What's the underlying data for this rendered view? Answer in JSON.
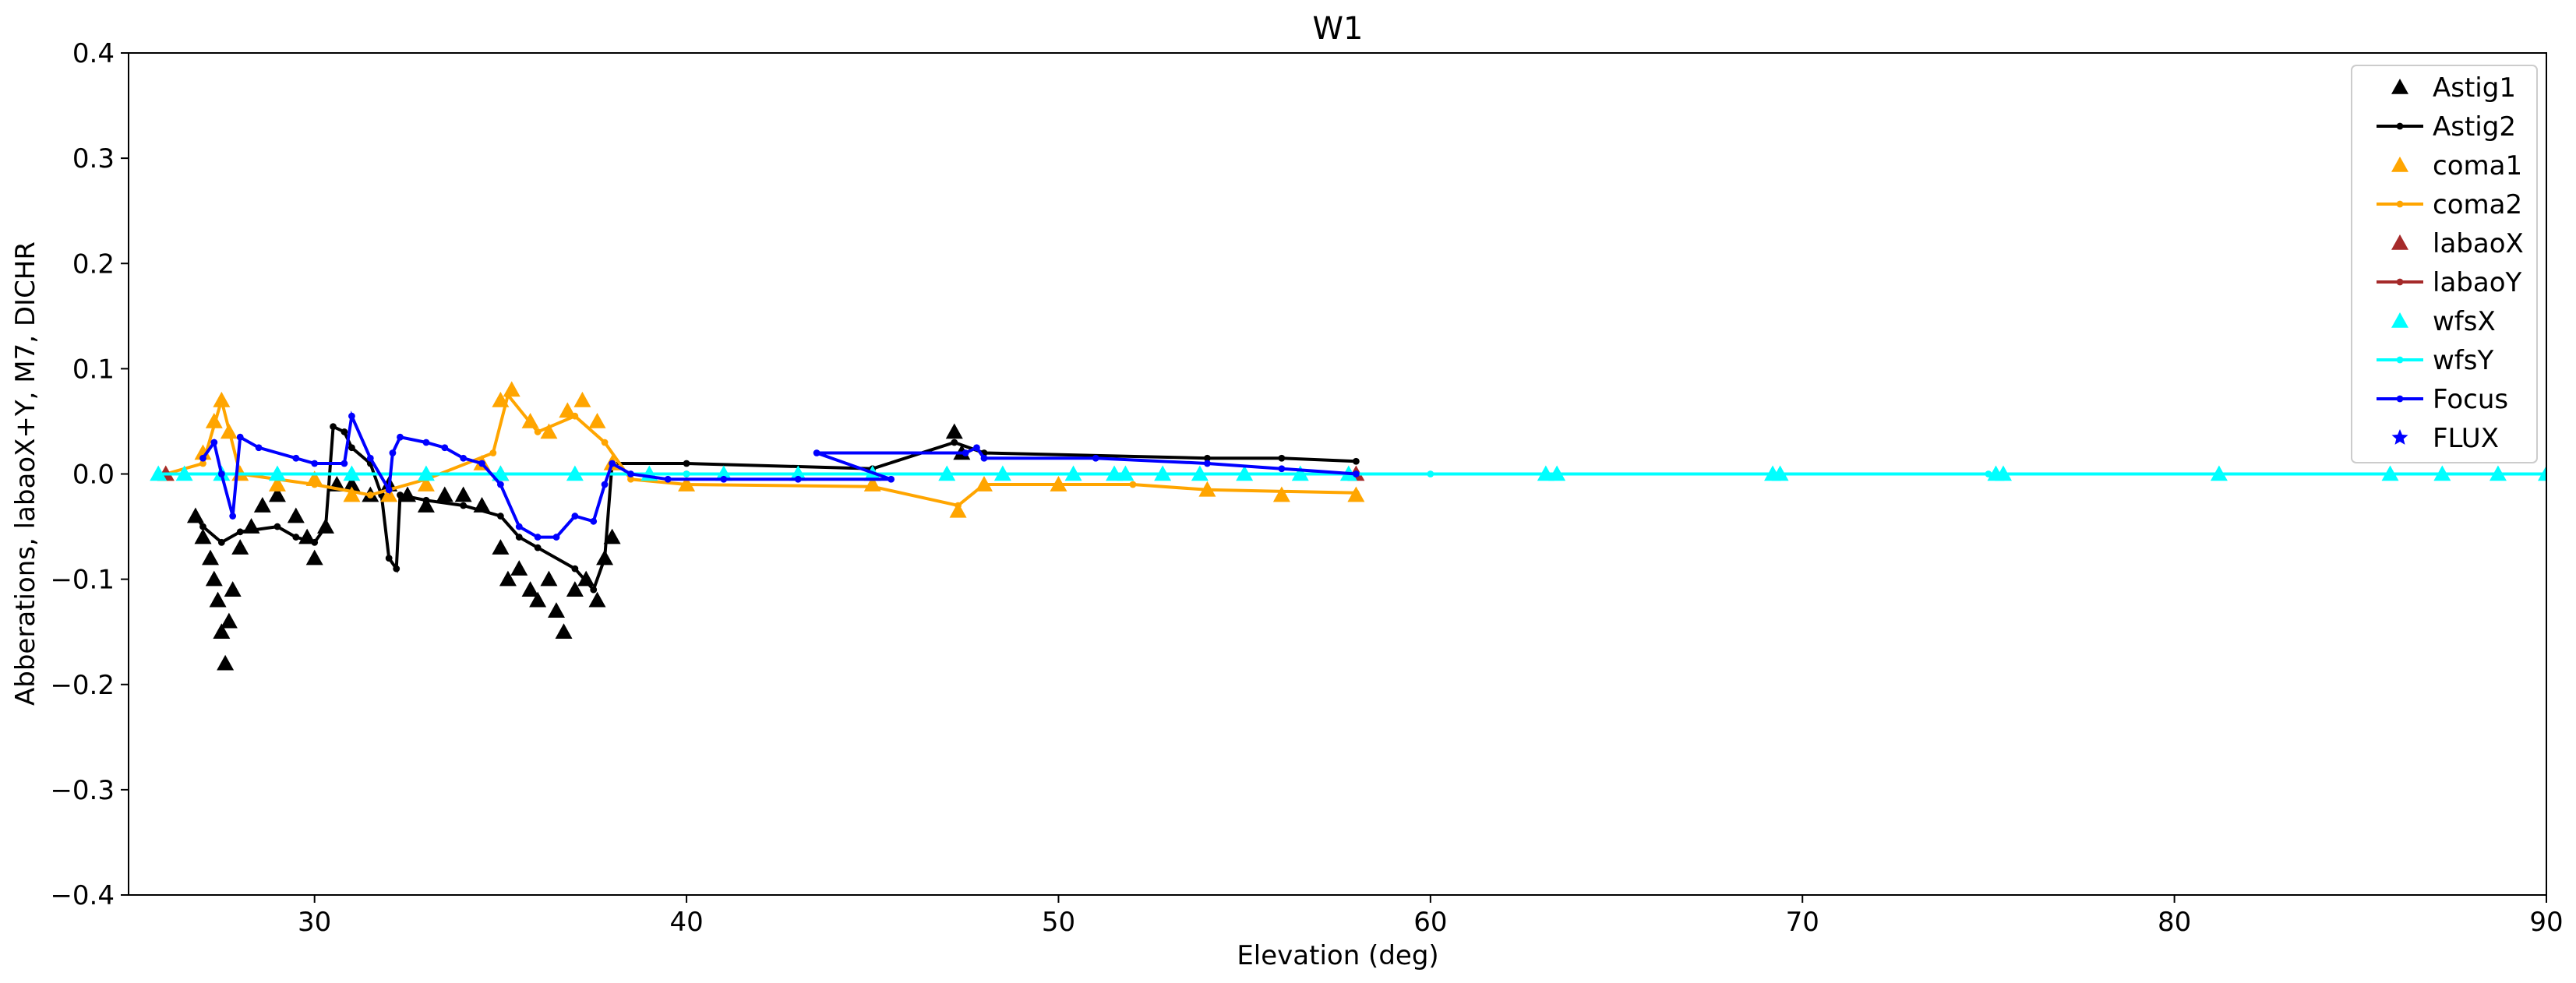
{
  "chart_data": {
    "type": "line",
    "title": "W1",
    "xlabel": "Elevation (deg)",
    "ylabel": "Abberations, labaoX+Y, M7, DICHR",
    "xlim": [
      25,
      90
    ],
    "ylim": [
      -0.4,
      0.4
    ],
    "x_ticks": [
      30,
      40,
      50,
      60,
      70,
      80,
      90
    ],
    "y_ticks": [
      -0.4,
      -0.3,
      -0.2,
      -0.1,
      0.0,
      0.1,
      0.2,
      0.3,
      0.4
    ],
    "x_tick_labels": [
      "30",
      "40",
      "50",
      "60",
      "70",
      "80",
      "90"
    ],
    "y_tick_labels": [
      "−0.4",
      "−0.3",
      "−0.2",
      "−0.1",
      "0.0",
      "0.1",
      "0.2",
      "0.3",
      "0.4"
    ],
    "grid": false,
    "legend_position": "top-right",
    "series": [
      {
        "name": "Astig1",
        "color": "#000000",
        "marker": "triangle",
        "line": false,
        "points": [
          [
            26.8,
            -0.04
          ],
          [
            27.0,
            -0.06
          ],
          [
            27.2,
            -0.08
          ],
          [
            27.3,
            -0.1
          ],
          [
            27.4,
            -0.12
          ],
          [
            27.5,
            -0.15
          ],
          [
            27.6,
            -0.18
          ],
          [
            27.7,
            -0.14
          ],
          [
            27.8,
            -0.11
          ],
          [
            28.0,
            -0.07
          ],
          [
            28.3,
            -0.05
          ],
          [
            28.6,
            -0.03
          ],
          [
            29.0,
            -0.02
          ],
          [
            29.5,
            -0.04
          ],
          [
            29.8,
            -0.06
          ],
          [
            30.0,
            -0.08
          ],
          [
            30.3,
            -0.05
          ],
          [
            30.6,
            -0.01
          ],
          [
            31.0,
            -0.01
          ],
          [
            31.5,
            -0.02
          ],
          [
            32.0,
            -0.01
          ],
          [
            32.5,
            -0.02
          ],
          [
            33.0,
            -0.03
          ],
          [
            33.5,
            -0.02
          ],
          [
            34.0,
            -0.02
          ],
          [
            34.5,
            -0.03
          ],
          [
            35.0,
            -0.07
          ],
          [
            35.2,
            -0.1
          ],
          [
            35.5,
            -0.09
          ],
          [
            35.8,
            -0.11
          ],
          [
            36.0,
            -0.12
          ],
          [
            36.3,
            -0.1
          ],
          [
            36.5,
            -0.13
          ],
          [
            36.7,
            -0.15
          ],
          [
            37.0,
            -0.11
          ],
          [
            37.3,
            -0.1
          ],
          [
            37.6,
            -0.12
          ],
          [
            37.8,
            -0.08
          ],
          [
            38.0,
            -0.06
          ],
          [
            47.2,
            0.04
          ],
          [
            47.4,
            0.02
          ]
        ]
      },
      {
        "name": "Astig2",
        "color": "#000000",
        "marker": "dot",
        "line": true,
        "points": [
          [
            26.8,
            -0.04
          ],
          [
            27.0,
            -0.05
          ],
          [
            27.5,
            -0.065
          ],
          [
            28.0,
            -0.055
          ],
          [
            29.0,
            -0.05
          ],
          [
            29.5,
            -0.06
          ],
          [
            30.0,
            -0.065
          ],
          [
            30.3,
            -0.05
          ],
          [
            30.5,
            0.045
          ],
          [
            30.8,
            0.04
          ],
          [
            31.0,
            0.025
          ],
          [
            31.5,
            0.01
          ],
          [
            31.8,
            -0.02
          ],
          [
            32.0,
            -0.08
          ],
          [
            32.2,
            -0.09
          ],
          [
            32.3,
            -0.02
          ],
          [
            33.0,
            -0.025
          ],
          [
            34.0,
            -0.03
          ],
          [
            35.0,
            -0.04
          ],
          [
            35.5,
            -0.06
          ],
          [
            36.0,
            -0.07
          ],
          [
            37.0,
            -0.09
          ],
          [
            37.5,
            -0.11
          ],
          [
            37.8,
            -0.08
          ],
          [
            38.0,
            0.01
          ],
          [
            40.0,
            0.01
          ],
          [
            45.0,
            0.005
          ],
          [
            47.2,
            0.03
          ],
          [
            48.0,
            0.02
          ],
          [
            54.0,
            0.015
          ],
          [
            56.0,
            0.015
          ],
          [
            58.0,
            0.012
          ]
        ]
      },
      {
        "name": "coma1",
        "color": "#ffa500",
        "marker": "triangle",
        "line": false,
        "points": [
          [
            26.0,
            0.0
          ],
          [
            27.0,
            0.02
          ],
          [
            27.3,
            0.05
          ],
          [
            27.5,
            0.07
          ],
          [
            27.7,
            0.04
          ],
          [
            28.0,
            0.0
          ],
          [
            29.0,
            -0.01
          ],
          [
            30.0,
            -0.005
          ],
          [
            31.0,
            -0.02
          ],
          [
            32.0,
            -0.02
          ],
          [
            33.0,
            -0.01
          ],
          [
            34.5,
            0.01
          ],
          [
            35.0,
            0.07
          ],
          [
            35.3,
            0.08
          ],
          [
            35.8,
            0.05
          ],
          [
            36.3,
            0.04
          ],
          [
            36.8,
            0.06
          ],
          [
            37.2,
            0.07
          ],
          [
            37.6,
            0.05
          ],
          [
            38.0,
            0.01
          ],
          [
            40.0,
            -0.01
          ],
          [
            45.0,
            -0.01
          ],
          [
            47.3,
            -0.035
          ],
          [
            48.0,
            -0.01
          ],
          [
            50.0,
            -0.01
          ],
          [
            54.0,
            -0.015
          ],
          [
            56.0,
            -0.02
          ],
          [
            58.0,
            -0.02
          ]
        ]
      },
      {
        "name": "coma2",
        "color": "#ffa500",
        "marker": "dot",
        "line": true,
        "points": [
          [
            26.0,
            0.0
          ],
          [
            27.0,
            0.01
          ],
          [
            27.5,
            0.07
          ],
          [
            28.0,
            0.0
          ],
          [
            30.0,
            -0.01
          ],
          [
            31.5,
            -0.02
          ],
          [
            33.0,
            -0.005
          ],
          [
            34.8,
            0.02
          ],
          [
            35.2,
            0.075
          ],
          [
            36.0,
            0.04
          ],
          [
            37.0,
            0.055
          ],
          [
            37.8,
            0.03
          ],
          [
            38.5,
            -0.005
          ],
          [
            40.0,
            -0.01
          ],
          [
            45.0,
            -0.012
          ],
          [
            47.3,
            -0.03
          ],
          [
            48.0,
            -0.01
          ],
          [
            52.0,
            -0.01
          ],
          [
            54.0,
            -0.015
          ],
          [
            58.0,
            -0.018
          ]
        ]
      },
      {
        "name": "labaoX",
        "color": "#a52a2a",
        "marker": "triangle",
        "line": false,
        "points": [
          [
            26.0,
            0.0
          ],
          [
            35.0,
            0.0
          ],
          [
            45.0,
            0.0
          ],
          [
            58.0,
            0.0
          ]
        ]
      },
      {
        "name": "labaoY",
        "color": "#a52a2a",
        "marker": "dot",
        "line": true,
        "points": [
          [
            26.0,
            0.0
          ],
          [
            40.0,
            0.0
          ],
          [
            58.0,
            0.0
          ]
        ]
      },
      {
        "name": "wfsX",
        "color": "#00ffff",
        "marker": "triangle",
        "line": false,
        "points": [
          [
            25.8,
            0.0
          ],
          [
            26.5,
            0.0
          ],
          [
            27.5,
            0.0
          ],
          [
            29.0,
            0.0
          ],
          [
            31.0,
            0.0
          ],
          [
            33.0,
            0.0
          ],
          [
            35.0,
            0.0
          ],
          [
            37.0,
            0.0
          ],
          [
            39.0,
            0.0
          ],
          [
            41.0,
            0.0
          ],
          [
            43.0,
            0.0
          ],
          [
            45.0,
            0.0
          ],
          [
            47.0,
            0.0
          ],
          [
            48.5,
            0.0
          ],
          [
            50.4,
            0.0
          ],
          [
            51.5,
            0.0
          ],
          [
            51.8,
            0.0
          ],
          [
            52.8,
            0.0
          ],
          [
            53.8,
            0.0
          ],
          [
            55.0,
            0.0
          ],
          [
            56.5,
            0.0
          ],
          [
            57.8,
            0.0
          ],
          [
            63.1,
            0.0
          ],
          [
            63.4,
            0.0
          ],
          [
            69.2,
            0.0
          ],
          [
            69.4,
            0.0
          ],
          [
            75.2,
            0.0
          ],
          [
            75.4,
            0.0
          ],
          [
            81.2,
            0.0
          ],
          [
            85.8,
            0.0
          ],
          [
            87.2,
            0.0
          ],
          [
            88.7,
            0.0
          ],
          [
            90.0,
            0.0
          ]
        ]
      },
      {
        "name": "wfsY",
        "color": "#00ffff",
        "marker": "dot",
        "line": true,
        "points": [
          [
            25.8,
            0.0
          ],
          [
            40.0,
            0.0
          ],
          [
            60.0,
            0.0
          ],
          [
            75.0,
            0.0
          ],
          [
            90.0,
            0.0
          ]
        ]
      },
      {
        "name": "Focus",
        "color": "#0000ff",
        "marker": "dot",
        "line": true,
        "points": [
          [
            27.0,
            0.015
          ],
          [
            27.3,
            0.03
          ],
          [
            27.5,
            0.0
          ],
          [
            27.8,
            -0.04
          ],
          [
            28.0,
            0.035
          ],
          [
            28.5,
            0.025
          ],
          [
            29.5,
            0.015
          ],
          [
            30.0,
            0.01
          ],
          [
            30.8,
            0.01
          ],
          [
            31.0,
            0.055
          ],
          [
            31.5,
            0.015
          ],
          [
            32.0,
            -0.015
          ],
          [
            32.1,
            0.02
          ],
          [
            32.3,
            0.035
          ],
          [
            33.0,
            0.03
          ],
          [
            33.5,
            0.025
          ],
          [
            34.0,
            0.015
          ],
          [
            34.5,
            0.01
          ],
          [
            35.0,
            -0.01
          ],
          [
            35.5,
            -0.05
          ],
          [
            36.0,
            -0.06
          ],
          [
            36.5,
            -0.06
          ],
          [
            37.0,
            -0.04
          ],
          [
            37.5,
            -0.045
          ],
          [
            37.8,
            -0.01
          ],
          [
            38.0,
            0.01
          ],
          [
            38.5,
            0.0
          ],
          [
            39.5,
            -0.005
          ],
          [
            41.0,
            -0.005
          ],
          [
            43.0,
            -0.005
          ],
          [
            45.5,
            -0.005
          ],
          [
            43.5,
            0.02
          ],
          [
            47.5,
            0.02
          ],
          [
            47.8,
            0.025
          ],
          [
            48.0,
            0.015
          ],
          [
            51.0,
            0.015
          ],
          [
            54.0,
            0.01
          ],
          [
            56.0,
            0.005
          ],
          [
            58.0,
            0.0
          ]
        ]
      },
      {
        "name": "FLUX",
        "color": "#0000ff",
        "marker": "star",
        "line": false,
        "points": []
      }
    ]
  }
}
